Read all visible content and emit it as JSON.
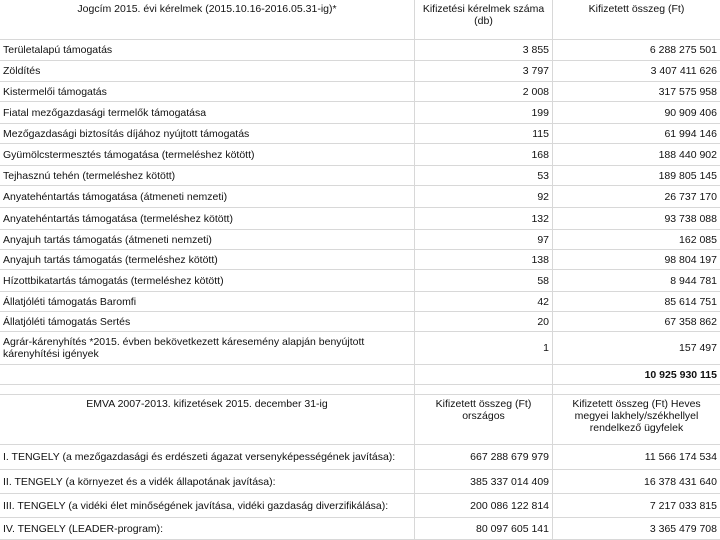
{
  "table1": {
    "header": [
      "Jogcím 2015. évi kérelmek (2015.10.16-2016.05.31-ig)*",
      "Kifizetési kérelmek száma (db)",
      "Kifizetett összeg (Ft)"
    ],
    "rows": [
      [
        "Területalapú támogatás",
        "3 855",
        "6 288 275 501"
      ],
      [
        "Zöldítés",
        "3 797",
        "3 407 411 626"
      ],
      [
        "Kistermelői támogatás",
        "2 008",
        "317 575 958"
      ],
      [
        "Fiatal mezőgazdasági termelők támogatása",
        "199",
        "90 909 406"
      ],
      [
        "Mezőgazdasági biztosítás díjához nyújtott támogatás",
        "115",
        "61 994 146"
      ],
      [
        "Gyümölcstermesztés támogatása (termeléshez kötött)",
        "168",
        "188 440 902"
      ],
      [
        "Tejhasznú tehén (termeléshez kötött)",
        "53",
        "189 805 145"
      ],
      [
        "Anyatehéntartás támogatása (átmeneti nemzeti)",
        "92",
        "26 737 170"
      ],
      [
        "Anyatehéntartás támogatása (termeléshez kötött)",
        "132",
        "93 738 088"
      ],
      [
        "Anyajuh tartás támogatás (átmeneti nemzeti)",
        "97",
        "162 085"
      ],
      [
        "Anyajuh tartás támogatás (termeléshez kötött)",
        "138",
        "98 804 197"
      ],
      [
        "Hízottbikatartás támogatás (termeléshez kötött)",
        "58",
        "8 944 781"
      ],
      [
        "Állatjóléti támogatás Baromfi",
        "42",
        "85 614 751"
      ],
      [
        "Állatjóléti támogatás Sertés",
        "20",
        "67 358 862"
      ],
      [
        "Agrár-kárenyhítés *2015. évben bekövetkezett káresemény alapján benyújtott kárenyhítési igények",
        "1",
        "157 497"
      ]
    ],
    "total": "10 925 930 115"
  },
  "table2": {
    "header": [
      "EMVA 2007-2013. kifizetések 2015. december 31-ig",
      "Kifizetett összeg (Ft) országos",
      "Kifizetett összeg (Ft) Heves megyei lakhely/székhellyel rendelkező ügyfelek"
    ],
    "rows": [
      [
        "I. TENGELY (a mezőgazdasági és erdészeti ágazat versenyképességének javítása):",
        "667 288 679 979",
        "11 566 174 534"
      ],
      [
        "II. TENGELY (a környezet és a vidék állapotának javítása):",
        "385 337 014 409",
        "16 378 431 640"
      ],
      [
        "III. TENGELY (a vidéki élet minőségének javítása, vidéki gazdaság diverzifikálása):",
        "200 086 122 814",
        "7 217 033 815"
      ],
      [
        "IV. TENGELY (LEADER-program):",
        "80 097 605 141",
        "3 365 479 708"
      ]
    ]
  }
}
